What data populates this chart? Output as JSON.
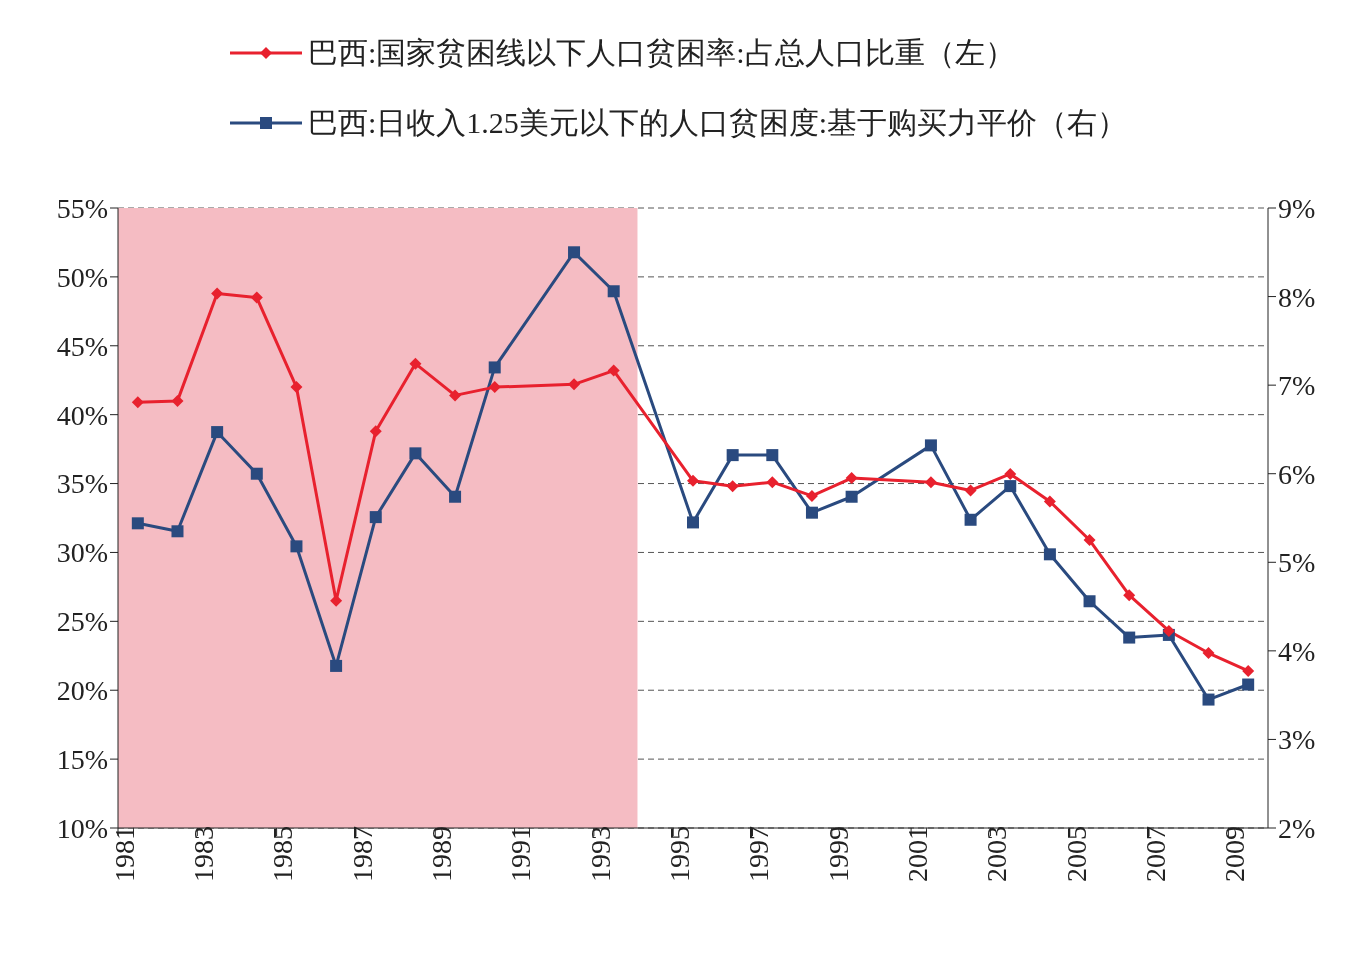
{
  "chart_data": {
    "type": "line",
    "x": [
      1981.5,
      1982.5,
      1983.5,
      1984.5,
      1985.5,
      1986.5,
      1987.5,
      1988.5,
      1989.5,
      1990.5,
      1992.5,
      1993.5,
      1995.5,
      1996.5,
      1997.5,
      1998.5,
      1999.5,
      2001.5,
      2002.5,
      2003.5,
      2004.5,
      2005.5,
      2006.5,
      2007.5,
      2008.5,
      2009.5
    ],
    "series": [
      {
        "name": "巴西:国家贫困线以下人口贫困率:占总人口比重（左）",
        "color": "#e8212e",
        "marker": "diamond",
        "values": [
          40.9,
          41.0,
          48.8,
          48.5,
          42.0,
          26.5,
          38.8,
          43.7,
          41.4,
          42.0,
          42.2,
          43.2,
          35.2,
          34.8,
          35.1,
          34.1,
          35.4,
          35.1,
          34.5,
          35.7,
          33.7,
          30.9,
          26.9,
          24.3,
          22.7,
          21.4
        ]
      },
      {
        "name": "巴西:日收入1.25美元以下的人口贫困度:基于购买力平价（右）",
        "color": "#2a4a7f",
        "marker": "square",
        "axis": "y2",
        "values": [
          5.44,
          5.35,
          6.47,
          6.0,
          5.18,
          3.83,
          5.51,
          6.23,
          5.74,
          7.2,
          8.5,
          8.06,
          5.45,
          6.21,
          6.21,
          5.56,
          5.74,
          6.32,
          5.48,
          5.86,
          5.09,
          4.56,
          4.15,
          4.18,
          3.45,
          3.62
        ]
      }
    ],
    "xlim": [
      1981,
      2010
    ],
    "xticks": [
      1981,
      1983,
      1985,
      1987,
      1989,
      1991,
      1993,
      1995,
      1997,
      1999,
      2001,
      2003,
      2005,
      2007,
      2009
    ],
    "ylim": [
      10,
      55
    ],
    "yticks": [
      {
        "value": 10,
        "label": "10%"
      },
      {
        "value": 15,
        "label": "15%"
      },
      {
        "value": 20,
        "label": "20%"
      },
      {
        "value": 25,
        "label": "25%"
      },
      {
        "value": 30,
        "label": "30%"
      },
      {
        "value": 35,
        "label": "35%"
      },
      {
        "value": 40,
        "label": "40%"
      },
      {
        "value": 45,
        "label": "45%"
      },
      {
        "value": 50,
        "label": "50%"
      },
      {
        "value": 55,
        "label": "55%"
      }
    ],
    "y2lim": [
      2,
      9
    ],
    "y2ticks": [
      {
        "value": 2,
        "label": "2%"
      },
      {
        "value": 3,
        "label": "3%"
      },
      {
        "value": 4,
        "label": "4%"
      },
      {
        "value": 5,
        "label": "5%"
      },
      {
        "value": 6,
        "label": "6%"
      },
      {
        "value": 7,
        "label": "7%"
      },
      {
        "value": 8,
        "label": "8%"
      },
      {
        "value": 9,
        "label": "9%"
      }
    ],
    "bands": [
      {
        "axis": "x",
        "from": 1981,
        "to": 1994.1,
        "color": "#f5bcc3"
      }
    ],
    "grid": "y",
    "legend": "top"
  }
}
